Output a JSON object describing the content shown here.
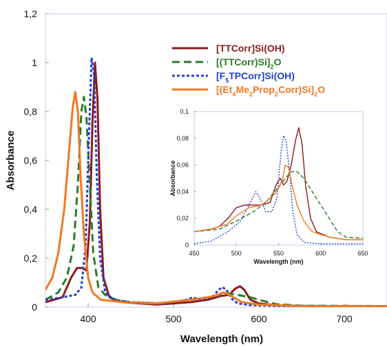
{
  "chart_data": [
    {
      "type": "line",
      "title": "",
      "xlabel": "Wavelength (nm)",
      "ylabel": "Absorbance",
      "xlim": [
        350,
        750
      ],
      "ylim": [
        0,
        1.2
      ],
      "x_ticks": [
        "400",
        "500",
        "600",
        "700"
      ],
      "y_ticks": [
        "0",
        "0,2",
        "0,4",
        "0,6",
        "0,8",
        "1",
        "1,2"
      ],
      "grid": false,
      "legend_position": "top-right",
      "series": [
        {
          "name": "[TTCorr]Si(OH)",
          "legend_html": "[TTCorr]Si(OH)",
          "color": "#8b1a1a",
          "dash": "solid",
          "points": [
            [
              350,
              0.02
            ],
            [
              370,
              0.04
            ],
            [
              380,
              0.12
            ],
            [
              387,
              0.16
            ],
            [
              393,
              0.16
            ],
            [
              398,
              0.15
            ],
            [
              402,
              0.35
            ],
            [
              405,
              0.75
            ],
            [
              408,
              1.0
            ],
            [
              411,
              0.85
            ],
            [
              414,
              0.4
            ],
            [
              418,
              0.12
            ],
            [
              425,
              0.04
            ],
            [
              440,
              0.02
            ],
            [
              480,
              0.01
            ],
            [
              520,
              0.02
            ],
            [
              540,
              0.03
            ],
            [
              555,
              0.045
            ],
            [
              565,
              0.05
            ],
            [
              572,
              0.075
            ],
            [
              578,
              0.085
            ],
            [
              583,
              0.07
            ],
            [
              590,
              0.03
            ],
            [
              600,
              0.015
            ],
            [
              620,
              0.008
            ],
            [
              650,
              0.005
            ],
            [
              750,
              0.003
            ]
          ]
        },
        {
          "name": "[(TTCorr)Si]2O",
          "legend_html": "[(TTCorr)Si]<tspan baseline-shift=\"sub\" font-size=\"9\">2</tspan>O",
          "color": "#2a7a2a",
          "dash": "long",
          "points": [
            [
              350,
              0.03
            ],
            [
              365,
              0.06
            ],
            [
              375,
              0.12
            ],
            [
              383,
              0.25
            ],
            [
              388,
              0.5
            ],
            [
              392,
              0.8
            ],
            [
              395,
              0.86
            ],
            [
              398,
              0.78
            ],
            [
              402,
              0.5
            ],
            [
              406,
              0.22
            ],
            [
              412,
              0.08
            ],
            [
              420,
              0.05
            ],
            [
              430,
              0.03
            ],
            [
              450,
              0.02
            ],
            [
              480,
              0.015
            ],
            [
              520,
              0.03
            ],
            [
              540,
              0.04
            ],
            [
              555,
              0.05
            ],
            [
              565,
              0.055
            ],
            [
              575,
              0.05
            ],
            [
              590,
              0.04
            ],
            [
              605,
              0.025
            ],
            [
              620,
              0.012
            ],
            [
              650,
              0.006
            ],
            [
              750,
              0.004
            ]
          ]
        },
        {
          "name": "[F5TPCorr]Si(OH)",
          "legend_html": "[F<tspan baseline-shift=\"sub\" font-size=\"9\">5</tspan>TPCorr]Si(OH)",
          "color": "#1f3fd0",
          "dash": "short",
          "points": [
            [
              350,
              0.03
            ],
            [
              370,
              0.04
            ],
            [
              385,
              0.05
            ],
            [
              392,
              0.08
            ],
            [
              397,
              0.25
            ],
            [
              401,
              0.7
            ],
            [
              404,
              1.02
            ],
            [
              407,
              0.95
            ],
            [
              410,
              0.55
            ],
            [
              414,
              0.2
            ],
            [
              420,
              0.06
            ],
            [
              430,
              0.03
            ],
            [
              450,
              0.02
            ],
            [
              490,
              0.015
            ],
            [
              515,
              0.03
            ],
            [
              523,
              0.04
            ],
            [
              530,
              0.03
            ],
            [
              545,
              0.04
            ],
            [
              553,
              0.07
            ],
            [
              557,
              0.082
            ],
            [
              562,
              0.07
            ],
            [
              568,
              0.035
            ],
            [
              575,
              0.015
            ],
            [
              590,
              0.008
            ],
            [
              620,
              0.005
            ],
            [
              750,
              0.003
            ]
          ]
        },
        {
          "name": "[(Et4Me2Prop2Corr)Si]2O",
          "legend_html": "[(Et<tspan baseline-shift=\"sub\" font-size=\"9\">4</tspan><tspan baseline-shift=\"super\" font-size=\"1\"> </tspan>Me<tspan baseline-shift=\"sub\" font-size=\"9\">2</tspan>Prop<tspan baseline-shift=\"sub\" font-size=\"9\">2</tspan>Corr)Si]<tspan baseline-shift=\"sub\" font-size=\"9\">2</tspan>O",
          "color": "#f07820",
          "dash": "solid",
          "points": [
            [
              350,
              0.07
            ],
            [
              358,
              0.12
            ],
            [
              365,
              0.22
            ],
            [
              372,
              0.4
            ],
            [
              378,
              0.65
            ],
            [
              382,
              0.82
            ],
            [
              385,
              0.88
            ],
            [
              388,
              0.8
            ],
            [
              391,
              0.55
            ],
            [
              395,
              0.3
            ],
            [
              400,
              0.12
            ],
            [
              405,
              0.06
            ],
            [
              415,
              0.03
            ],
            [
              440,
              0.02
            ],
            [
              480,
              0.015
            ],
            [
              520,
              0.03
            ],
            [
              540,
              0.04
            ],
            [
              552,
              0.05
            ],
            [
              558,
              0.06
            ],
            [
              563,
              0.055
            ],
            [
              570,
              0.04
            ],
            [
              580,
              0.02
            ],
            [
              600,
              0.01
            ],
            [
              650,
              0.005
            ],
            [
              750,
              0.003
            ]
          ]
        }
      ]
    },
    {
      "type": "line",
      "title": "",
      "xlabel": "Wavelength (nm)",
      "ylabel": "Absorbance",
      "xlim": [
        450,
        650
      ],
      "ylim": [
        0,
        0.1
      ],
      "x_ticks": [
        "450",
        "500",
        "550",
        "600",
        "650"
      ],
      "y_ticks": [
        "0",
        "0,02",
        "0,04",
        "0,06",
        "0,08",
        "0,1"
      ],
      "grid": false,
      "series": [
        {
          "name": "[TTCorr]Si(OH)",
          "color": "#8b1a1a",
          "dash": "solid",
          "points": [
            [
              450,
              0.01
            ],
            [
              470,
              0.012
            ],
            [
              480,
              0.014
            ],
            [
              490,
              0.02
            ],
            [
              500,
              0.028
            ],
            [
              510,
              0.03
            ],
            [
              520,
              0.03
            ],
            [
              530,
              0.03
            ],
            [
              540,
              0.032
            ],
            [
              547,
              0.045
            ],
            [
              552,
              0.05
            ],
            [
              556,
              0.045
            ],
            [
              560,
              0.048
            ],
            [
              565,
              0.06
            ],
            [
              570,
              0.078
            ],
            [
              574,
              0.088
            ],
            [
              578,
              0.075
            ],
            [
              582,
              0.045
            ],
            [
              588,
              0.02
            ],
            [
              595,
              0.01
            ],
            [
              610,
              0.006
            ],
            [
              630,
              0.004
            ],
            [
              650,
              0.004
            ]
          ]
        },
        {
          "name": "[(TTCorr)Si]2O",
          "color": "#2a7a2a",
          "dash": "long",
          "points": [
            [
              450,
              0.01
            ],
            [
              480,
              0.012
            ],
            [
              500,
              0.018
            ],
            [
              520,
              0.025
            ],
            [
              535,
              0.032
            ],
            [
              548,
              0.042
            ],
            [
              558,
              0.05
            ],
            [
              565,
              0.055
            ],
            [
              572,
              0.055
            ],
            [
              580,
              0.05
            ],
            [
              590,
              0.04
            ],
            [
              600,
              0.03
            ],
            [
              610,
              0.02
            ],
            [
              620,
              0.01
            ],
            [
              630,
              0.006
            ],
            [
              650,
              0.005
            ]
          ]
        },
        {
          "name": "[F5TPCorr]Si(OH)",
          "color": "#1f3fd0",
          "dash": "short",
          "points": [
            [
              450,
              0.001
            ],
            [
              470,
              0.003
            ],
            [
              490,
              0.01
            ],
            [
              505,
              0.018
            ],
            [
              515,
              0.03
            ],
            [
              523,
              0.04
            ],
            [
              528,
              0.035
            ],
            [
              535,
              0.025
            ],
            [
              542,
              0.025
            ],
            [
              548,
              0.035
            ],
            [
              553,
              0.07
            ],
            [
              556,
              0.082
            ],
            [
              559,
              0.078
            ],
            [
              563,
              0.055
            ],
            [
              567,
              0.025
            ],
            [
              572,
              0.008
            ],
            [
              580,
              0.002
            ],
            [
              600,
              0.001
            ],
            [
              650,
              0.001
            ]
          ]
        },
        {
          "name": "[(Et4Me2Prop2Corr)Si]2O",
          "color": "#f07820",
          "dash": "solid",
          "points": [
            [
              450,
              0.01
            ],
            [
              470,
              0.012
            ],
            [
              490,
              0.016
            ],
            [
              500,
              0.022
            ],
            [
              515,
              0.028
            ],
            [
              530,
              0.03
            ],
            [
              540,
              0.035
            ],
            [
              548,
              0.04
            ],
            [
              552,
              0.045
            ],
            [
              555,
              0.05
            ],
            [
              558,
              0.06
            ],
            [
              562,
              0.058
            ],
            [
              566,
              0.045
            ],
            [
              572,
              0.03
            ],
            [
              580,
              0.018
            ],
            [
              590,
              0.01
            ],
            [
              610,
              0.006
            ],
            [
              630,
              0.004
            ],
            [
              650,
              0.004
            ]
          ]
        }
      ]
    }
  ]
}
